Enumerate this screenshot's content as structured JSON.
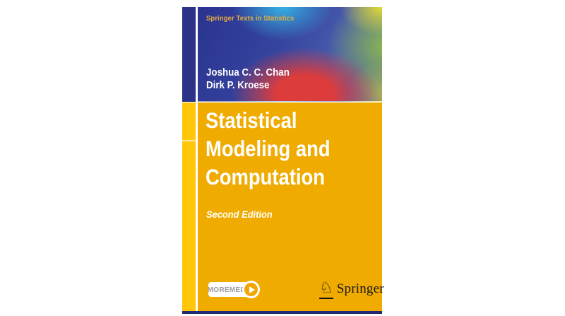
{
  "cover": {
    "series_title": "Springer Texts in Statistics",
    "authors": [
      "Joshua C. C. Chan",
      "Dirk P. Kroese"
    ],
    "title_lines": [
      "Statistical",
      "Modeling and",
      "Computation"
    ],
    "edition": "Second Edition",
    "moremedia": {
      "label": "MOREMEDIA"
    },
    "publisher": {
      "name": "Springer",
      "horse_icon_glyph": "♘"
    },
    "colors": {
      "body_yellow": "#F0AB00",
      "spine_yellow": "#FFC60A",
      "navy_spine": "#2B3288",
      "bottom_bar_navy": "#1F2A72",
      "series_text_gold": "#E9AC3A",
      "gradient_red": "#DC3C3C",
      "gradient_cyan": "#35B5E6",
      "gradient_yellow_green": "#E3DC33",
      "moremedia_text_gray": "#9B9B9B",
      "play_button_amber": "#F0A500",
      "logo_ink": "#15151E"
    }
  }
}
